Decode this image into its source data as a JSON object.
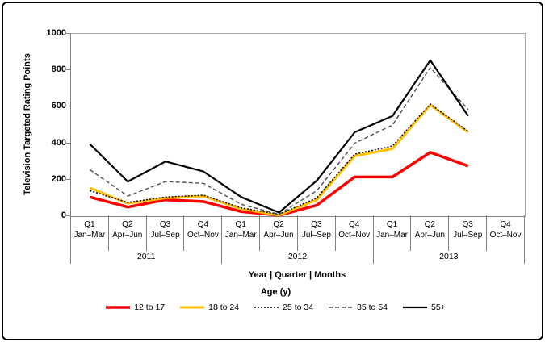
{
  "figure": {
    "y_axis": {
      "title": "Television Targeted Rating Points",
      "ticks": [
        1000,
        800,
        600,
        400,
        200,
        0
      ],
      "max": 1000
    },
    "x_axis": {
      "title": "Year | Quarter | Months",
      "quarters": [
        {
          "q": "Q1",
          "months": "Jan–Mar"
        },
        {
          "q": "Q2",
          "months": "Apr–Jun"
        },
        {
          "q": "Q3",
          "months": "Jul–Sep"
        },
        {
          "q": "Q4",
          "months": "Oct–Nov"
        },
        {
          "q": "Q1",
          "months": "Jan–Mar"
        },
        {
          "q": "Q2",
          "months": "Apr–Jun"
        },
        {
          "q": "Q3",
          "months": "Jul–Sep"
        },
        {
          "q": "Q4",
          "months": "Oct–Nov"
        },
        {
          "q": "Q1",
          "months": "Jan–Mar"
        },
        {
          "q": "Q2",
          "months": "Apr–Jun"
        },
        {
          "q": "Q3",
          "months": "Jul–Sep"
        },
        {
          "q": "Q4",
          "months": "Oct–Nov"
        }
      ],
      "years": [
        "2011",
        "2012",
        "2013"
      ]
    },
    "legend": {
      "title": "Age (y)"
    }
  },
  "chart_data": {
    "type": "line",
    "title": "",
    "xlabel": "Year | Quarter | Months",
    "ylabel": "Television Targeted Rating Points",
    "ylim": [
      0,
      1000
    ],
    "grid": false,
    "legend_position": "bottom",
    "categories": [
      "Q1 Jan–Mar 2011",
      "Q2 Apr–Jun 2011",
      "Q3 Jul–Sep 2011",
      "Q4 Oct–Nov 2011",
      "Q1 Jan–Mar 2012",
      "Q2 Apr–Jun 2012",
      "Q3 Jul–Sep 2012",
      "Q4 Oct–Nov 2012",
      "Q1 Jan–Mar 2013",
      "Q2 Apr–Jun 2013",
      "Q3 Jul–Sep 2013",
      "Q4 Oct–Nov 2013"
    ],
    "series": [
      {
        "name": "12 to 17",
        "color": "#FF0000",
        "style": "solid",
        "width": 3.5,
        "values": [
          105,
          50,
          90,
          80,
          25,
          5,
          60,
          215,
          215,
          350,
          275,
          null
        ]
      },
      {
        "name": "18 to 24",
        "color": "#FFC000",
        "style": "solid",
        "width": 3,
        "values": [
          155,
          70,
          100,
          110,
          40,
          5,
          90,
          330,
          370,
          610,
          460,
          null
        ]
      },
      {
        "name": "25 to 34",
        "color": "#000000",
        "style": "dotted",
        "width": 1.5,
        "values": [
          140,
          75,
          105,
          115,
          45,
          10,
          100,
          340,
          385,
          615,
          465,
          null
        ]
      },
      {
        "name": "35 to 54",
        "color": "#4D4D4D",
        "style": "dashed",
        "width": 1.4,
        "values": [
          255,
          110,
          190,
          180,
          65,
          10,
          140,
          400,
          500,
          815,
          585,
          null
        ]
      },
      {
        "name": "55+",
        "color": "#000000",
        "style": "solid",
        "width": 2.2,
        "values": [
          395,
          190,
          300,
          245,
          105,
          20,
          195,
          460,
          550,
          855,
          550,
          null
        ]
      }
    ]
  }
}
